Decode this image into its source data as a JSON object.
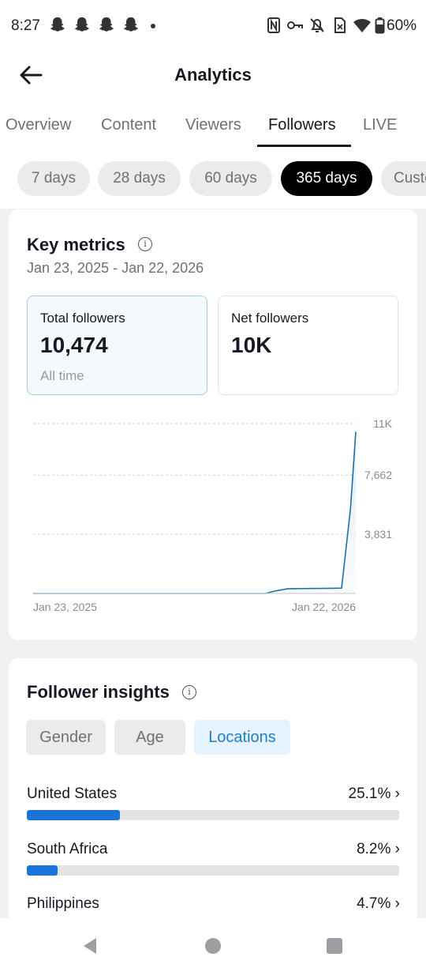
{
  "status": {
    "time": "8:27",
    "battery": "60%"
  },
  "header": {
    "title": "Analytics"
  },
  "tabs": [
    {
      "label": "Overview"
    },
    {
      "label": "Content"
    },
    {
      "label": "Viewers"
    },
    {
      "label": "Followers",
      "active": true
    },
    {
      "label": "LIVE"
    }
  ],
  "ranges": [
    {
      "label": "7 days"
    },
    {
      "label": "28 days"
    },
    {
      "label": "60 days"
    },
    {
      "label": "365 days",
      "active": true
    },
    {
      "label": "Custom"
    }
  ],
  "key_metrics": {
    "title": "Key metrics",
    "date_range": "Jan 23, 2025 - Jan 22, 2026",
    "total": {
      "label": "Total followers",
      "value": "10,474",
      "sub": "All time"
    },
    "net": {
      "label": "Net followers",
      "value": "10K"
    }
  },
  "chart_data": {
    "type": "area",
    "x_start_label": "Jan 23, 2025",
    "x_end_label": "Jan 22, 2026",
    "y_ticks": [
      {
        "value": 11000,
        "label": "11K"
      },
      {
        "value": 7662,
        "label": "7,662"
      },
      {
        "value": 3831,
        "label": "3,831"
      }
    ],
    "ylim": [
      0,
      11000
    ],
    "grid": true,
    "series": [
      {
        "color": "#1f6fa8",
        "x": [
          "2025-01-23",
          "2025-10-12",
          "2025-10-22",
          "2025-11-06",
          "2025-12-01",
          "2025-12-28",
          "2026-01-06",
          "2026-01-16",
          "2026-01-22"
        ],
        "y": [
          0,
          0,
          150,
          300,
          320,
          340,
          350,
          5500,
          10474
        ]
      }
    ]
  },
  "insights": {
    "title": "Follower insights",
    "segments": [
      {
        "label": "Gender"
      },
      {
        "label": "Age"
      },
      {
        "label": "Locations",
        "active": true
      }
    ],
    "locations": [
      {
        "name": "United States",
        "pct_label": "25.1%",
        "pct": 25.1
      },
      {
        "name": "South Africa",
        "pct_label": "8.2%",
        "pct": 8.2
      },
      {
        "name": "Philippines",
        "pct_label": "4.7%",
        "pct": 4.7
      }
    ]
  },
  "colors": {
    "accent": "#1e7fc7",
    "bar": "#1a73d8",
    "line": "#1f6fa8"
  }
}
